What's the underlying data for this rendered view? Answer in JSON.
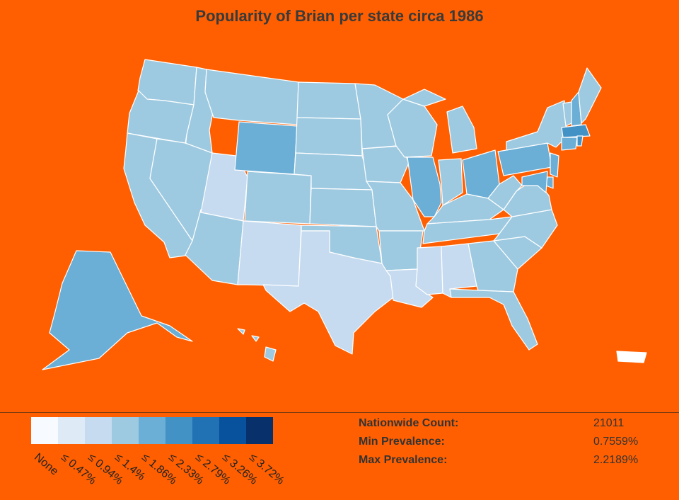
{
  "title": "Popularity of Brian per state circa 1986",
  "colors": {
    "background": "#ff5f00",
    "scale": [
      "#f7fbff",
      "#deebf7",
      "#c6dbef",
      "#9ecae1",
      "#6baed6",
      "#4292c6",
      "#2171b5",
      "#08519c",
      "#08306b"
    ]
  },
  "legend": {
    "labels": [
      "None",
      "≤ 0.47%",
      "≤ 0.94%",
      "≤ 1.4%",
      "≤ 1.86%",
      "≤ 2.33%",
      "≤ 2.79%",
      "≤ 3.26%",
      "≤ 3.72%"
    ]
  },
  "stats": {
    "rows": [
      {
        "label": "Nationwide Count:",
        "value": "21011"
      },
      {
        "label": "Min Prevalence:",
        "value": "0.7559%"
      },
      {
        "label": "Max Prevalence:",
        "value": "2.2189%"
      }
    ]
  },
  "state_levels": {
    "WA": 3,
    "OR": 3,
    "CA": 3,
    "ID": 3,
    "NV": 3,
    "UT": 2,
    "AZ": 3,
    "MT": 3,
    "WY": 4,
    "CO": 3,
    "NM": 2,
    "ND": 3,
    "SD": 3,
    "NE": 3,
    "KS": 3,
    "OK": 3,
    "TX": 2,
    "MN": 3,
    "IA": 3,
    "MO": 3,
    "AR": 3,
    "LA": 2,
    "WI": 3,
    "IL": 4,
    "MI": 3,
    "IN": 3,
    "OH": 4,
    "KY": 3,
    "TN": 3,
    "MS": 2,
    "AL": 2,
    "GA": 3,
    "FL": 3,
    "SC": 3,
    "NC": 3,
    "VA": 3,
    "WV": 3,
    "PA": 4,
    "NY": 3,
    "NJ": 4,
    "MD": 4,
    "DE": 4,
    "VT": 3,
    "NH": 4,
    "ME": 3,
    "MA": 5,
    "CT": 4,
    "RI": 5,
    "AK": 4,
    "HI": 3,
    "PR": 0
  }
}
